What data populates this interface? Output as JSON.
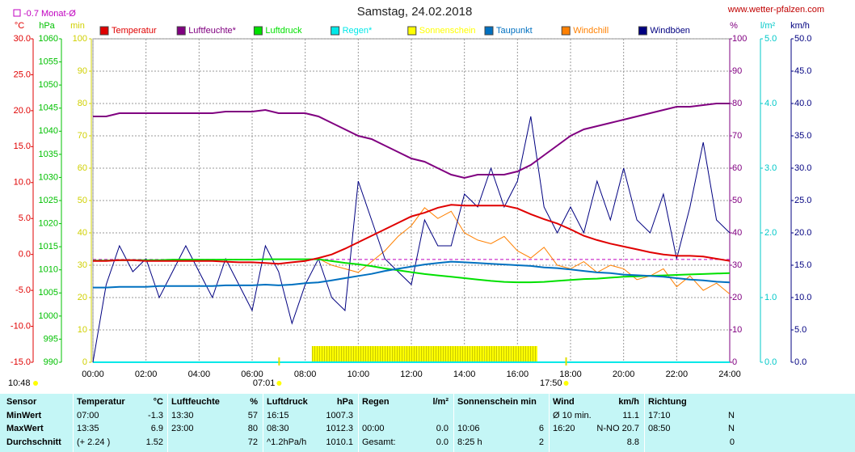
{
  "chart_data": {
    "type": "line",
    "title": "Samstag, 24.02.2018",
    "source": "www.wetter-pfalzen.com",
    "monthly_mean": {
      "label": "-0.7 Monat-Ø",
      "value": -0.7,
      "color": "#c000c0"
    },
    "sun": {
      "daylength": "10:48",
      "rise_label": "07:01",
      "rise": 7.0167,
      "set_label": "17:50",
      "set": 17.8333
    },
    "grid": true,
    "xlim": [
      0,
      24
    ],
    "xticks": [
      {
        "value": 0,
        "label": "00:00"
      },
      {
        "value": 2,
        "label": "02:00"
      },
      {
        "value": 4,
        "label": "04:00"
      },
      {
        "value": 6,
        "label": "06:00"
      },
      {
        "value": 8,
        "label": "08:00"
      },
      {
        "value": 10,
        "label": "10:00"
      },
      {
        "value": 12,
        "label": "12:00"
      },
      {
        "value": 14,
        "label": "14:00"
      },
      {
        "value": 16,
        "label": "16:00"
      },
      {
        "value": 18,
        "label": "18:00"
      },
      {
        "value": 20,
        "label": "20:00"
      },
      {
        "value": 22,
        "label": "22:00"
      },
      {
        "value": 24,
        "label": "24:00"
      }
    ],
    "axes": {
      "temp": {
        "unit": "°C",
        "color": "#e00000",
        "lim": [
          -15,
          30
        ],
        "ticks": [
          {
            "value": -15,
            "label": "-15.0"
          },
          {
            "value": -10,
            "label": "-10.0"
          },
          {
            "value": -5,
            "label": "-5.0"
          },
          {
            "value": 0,
            "label": "0.0"
          },
          {
            "value": 5,
            "label": "5.0"
          },
          {
            "value": 10,
            "label": "10.0"
          },
          {
            "value": 15,
            "label": "15.0"
          },
          {
            "value": 20,
            "label": "20.0"
          },
          {
            "value": 25,
            "label": "25.0"
          },
          {
            "value": 30,
            "label": "30.0"
          }
        ]
      },
      "hpa": {
        "unit": "hPa",
        "color": "#00c000",
        "lim": [
          990,
          1060
        ],
        "ticks": [
          990,
          995,
          1000,
          1005,
          1010,
          1015,
          1020,
          1025,
          1030,
          1035,
          1040,
          1045,
          1050,
          1055,
          1060
        ]
      },
      "min": {
        "unit": "min",
        "color": "#d0d000",
        "lim": [
          0,
          100
        ],
        "ticks": [
          0,
          10,
          20,
          30,
          40,
          50,
          60,
          70,
          80,
          90,
          100
        ]
      },
      "pct": {
        "unit": "%",
        "color": "#800080",
        "lim": [
          0,
          100
        ],
        "ticks": [
          0,
          10,
          20,
          30,
          40,
          50,
          60,
          70,
          80,
          90,
          100
        ]
      },
      "rain": {
        "unit": "l/m²",
        "color": "#00c8c8",
        "lim": [
          0,
          5
        ],
        "ticks": [
          {
            "value": 0,
            "label": "0.0"
          },
          {
            "value": 1,
            "label": "1.0"
          },
          {
            "value": 2,
            "label": "2.0"
          },
          {
            "value": 3,
            "label": "3.0"
          },
          {
            "value": 4,
            "label": "4.0"
          },
          {
            "value": 5,
            "label": "5.0"
          }
        ]
      },
      "kmh": {
        "unit": "km/h",
        "color": "#000080",
        "lim": [
          0,
          50
        ],
        "ticks": [
          {
            "value": 0,
            "label": "0.0"
          },
          {
            "value": 5,
            "label": "5.0"
          },
          {
            "value": 10,
            "label": "10.0"
          },
          {
            "value": 15,
            "label": "15.0"
          },
          {
            "value": 20,
            "label": "20.0"
          },
          {
            "value": 25,
            "label": "25.0"
          },
          {
            "value": 30,
            "label": "30.0"
          },
          {
            "value": 35,
            "label": "35.0"
          },
          {
            "value": 40,
            "label": "40.0"
          },
          {
            "value": 45,
            "label": "45.0"
          },
          {
            "value": 50,
            "label": "50.0"
          }
        ]
      }
    },
    "x": [
      0,
      0.5,
      1,
      1.5,
      2,
      2.5,
      3,
      3.5,
      4,
      4.5,
      5,
      5.5,
      6,
      6.5,
      7,
      7.5,
      8,
      8.5,
      9,
      9.5,
      10,
      10.5,
      11,
      11.5,
      12,
      12.5,
      13,
      13.5,
      14,
      14.5,
      15,
      15.5,
      16,
      16.5,
      17,
      17.5,
      18,
      18.5,
      19,
      19.5,
      20,
      20.5,
      21,
      21.5,
      22,
      22.5,
      23,
      23.5,
      24
    ],
    "series": [
      {
        "name": "Temperatur",
        "color": "#e00000",
        "axis": "temp",
        "mark": "line",
        "values": [
          -0.9,
          -0.9,
          -0.8,
          -0.8,
          -0.9,
          -0.9,
          -0.9,
          -0.9,
          -0.9,
          -0.9,
          -1.0,
          -1.1,
          -1.1,
          -1.2,
          -1.3,
          -1.1,
          -0.9,
          -0.5,
          0.0,
          0.8,
          1.7,
          2.6,
          3.5,
          4.4,
          5.3,
          5.8,
          6.5,
          6.9,
          6.8,
          6.8,
          6.8,
          6.8,
          6.4,
          5.6,
          4.9,
          4.3,
          3.5,
          2.6,
          2.0,
          1.5,
          1.1,
          0.7,
          0.3,
          0.0,
          -0.2,
          -0.2,
          -0.3,
          -0.6,
          -0.9
        ]
      },
      {
        "name": "Luftfeuchte*",
        "color": "#800080",
        "axis": "pct",
        "mark": "line",
        "values": [
          76,
          76,
          77,
          77,
          77,
          77,
          77,
          77,
          77,
          77,
          77.5,
          77.5,
          77.5,
          78,
          77,
          77,
          77,
          76,
          74,
          72,
          70,
          69,
          67,
          65,
          63,
          62,
          60,
          58,
          57,
          58,
          58,
          58,
          59,
          61,
          64,
          67,
          70,
          72,
          73,
          74,
          75,
          76,
          77,
          78,
          79,
          79,
          79.5,
          80,
          80
        ]
      },
      {
        "name": "Luftdruck",
        "color": "#00e000",
        "axis": "hpa",
        "mark": "line",
        "values": [
          1012.0,
          1012.0,
          1012.1,
          1012.1,
          1012.1,
          1012.1,
          1012.2,
          1012.2,
          1012.2,
          1012.2,
          1012.2,
          1012.2,
          1012.2,
          1012.3,
          1012.3,
          1012.3,
          1012.3,
          1012.3,
          1011.9,
          1011.5,
          1011.2,
          1010.8,
          1010.3,
          1009.9,
          1009.5,
          1009.1,
          1008.8,
          1008.5,
          1008.2,
          1007.9,
          1007.6,
          1007.4,
          1007.3,
          1007.3,
          1007.4,
          1007.6,
          1007.8,
          1008.0,
          1008.1,
          1008.3,
          1008.5,
          1008.6,
          1008.7,
          1008.8,
          1008.9,
          1009.0,
          1009.1,
          1009.2,
          1009.3
        ]
      },
      {
        "name": "Regen*",
        "color": "#00e8e8",
        "axis": "rain",
        "mark": "line",
        "values": [
          0,
          0,
          0,
          0,
          0,
          0,
          0,
          0,
          0,
          0,
          0,
          0,
          0,
          0,
          0,
          0,
          0,
          0,
          0,
          0,
          0,
          0,
          0,
          0,
          0,
          0,
          0,
          0,
          0,
          0,
          0,
          0,
          0,
          0,
          0,
          0,
          0,
          0,
          0,
          0,
          0,
          0,
          0,
          0,
          0,
          0,
          0,
          0,
          0
        ]
      },
      {
        "name": "Sonnenschein",
        "color": "#ffff00",
        "axis": "min",
        "mark": "bar",
        "values": [
          0,
          0,
          0,
          0,
          0,
          0,
          0,
          0,
          0,
          0,
          0,
          0,
          0,
          0,
          0,
          0,
          0,
          5,
          5,
          5,
          5,
          5,
          5,
          5,
          5,
          5,
          5,
          5,
          5,
          5,
          5,
          5,
          5,
          5,
          0,
          0,
          0,
          0,
          0,
          0,
          0,
          0,
          0,
          0,
          0,
          0,
          0,
          0,
          0
        ]
      },
      {
        "name": "Taupunkt",
        "color": "#0070c0",
        "axis": "temp",
        "mark": "line",
        "values": [
          -4.6,
          -4.6,
          -4.5,
          -4.5,
          -4.5,
          -4.4,
          -4.4,
          -4.4,
          -4.4,
          -4.4,
          -4.3,
          -4.3,
          -4.3,
          -4.2,
          -4.3,
          -4.2,
          -4.0,
          -3.9,
          -3.6,
          -3.3,
          -3.0,
          -2.7,
          -2.3,
          -2.0,
          -1.7,
          -1.4,
          -1.2,
          -1.0,
          -1.1,
          -1.2,
          -1.3,
          -1.4,
          -1.5,
          -1.6,
          -1.8,
          -1.9,
          -2.1,
          -2.3,
          -2.5,
          -2.6,
          -2.8,
          -2.9,
          -3.0,
          -3.1,
          -3.3,
          -3.5,
          -3.6,
          -3.8,
          -3.9
        ]
      },
      {
        "name": "Windchill",
        "color": "#ff8000",
        "axis": "temp",
        "mark": "line",
        "values": [
          -0.9,
          -0.9,
          -0.8,
          -0.8,
          -0.9,
          -0.9,
          -0.9,
          -0.9,
          -0.9,
          -0.9,
          -1.0,
          -1.1,
          -1.1,
          -1.2,
          -1.3,
          -1.1,
          -0.9,
          -0.6,
          -1.5,
          -2.0,
          -2.5,
          -1.0,
          0.5,
          2.5,
          4.0,
          6.5,
          5.0,
          6.0,
          3.0,
          2.0,
          1.5,
          2.5,
          0.5,
          -0.5,
          1.0,
          -1.5,
          -2.0,
          -1.0,
          -2.5,
          -1.5,
          -2.0,
          -3.5,
          -3.0,
          -2.0,
          -4.5,
          -3.0,
          -5.0,
          -4.0,
          -5.5
        ]
      },
      {
        "name": "Windböen",
        "color": "#000080",
        "axis": "kmh",
        "mark": "line",
        "values": [
          0,
          12,
          18,
          14,
          16,
          10,
          14,
          18,
          14,
          10,
          16,
          12,
          8,
          18,
          14,
          6,
          12,
          16,
          10,
          8,
          28,
          22,
          16,
          14,
          12,
          22,
          18,
          18,
          26,
          24,
          30,
          24,
          28,
          38,
          24,
          20,
          24,
          20,
          28,
          22,
          30,
          22,
          20,
          26,
          16,
          24,
          34,
          22,
          20
        ]
      }
    ]
  },
  "table": {
    "header": [
      "Sensor",
      "Temperatur",
      "°C",
      "Luftfeuchte",
      "%",
      "Luftdruck",
      "hPa",
      "Regen",
      "l/m²",
      "Sonnenschein min",
      null,
      "Wind",
      "km/h",
      "Richtung",
      null
    ],
    "rows": [
      [
        "MinWert",
        "07:00",
        "-1.3",
        "13:30",
        "57",
        "16:15",
        "1007.3",
        null,
        null,
        null,
        null,
        "Ø 10 min.",
        "11.1",
        "17:10",
        "N"
      ],
      [
        "MaxWert",
        "13:35",
        "6.9",
        "23:00",
        "80",
        "08:30",
        "1012.3",
        "00:00",
        "0.0",
        "10:06",
        "6",
        "16:20",
        "N-NO 20.7",
        "08:50",
        "N"
      ],
      [
        "Durchschnitt",
        "(+ 2.24 )",
        "1.52",
        null,
        "72",
        "^1.2hPa/h",
        "1010.1",
        "Gesamt:",
        "0.0",
        "8:25 h",
        "2",
        null,
        "8.8",
        null,
        "0"
      ]
    ]
  }
}
